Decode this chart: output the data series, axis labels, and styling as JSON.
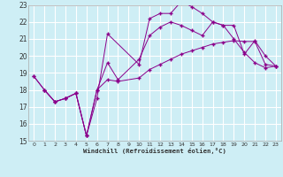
{
  "xlabel": "Windchill (Refroidissement éolien,°C)",
  "bg_color": "#ceeef5",
  "grid_color": "#ffffff",
  "line_color": "#8b008b",
  "xlim": [
    -0.5,
    23.5
  ],
  "ylim": [
    15,
    23
  ],
  "xticks": [
    0,
    1,
    2,
    3,
    4,
    5,
    6,
    7,
    8,
    9,
    10,
    11,
    12,
    13,
    14,
    15,
    16,
    17,
    18,
    19,
    20,
    21,
    22,
    23
  ],
  "yticks": [
    15,
    16,
    17,
    18,
    19,
    20,
    21,
    22,
    23
  ],
  "line1_x": [
    0,
    1,
    2,
    3,
    4,
    5,
    6,
    7,
    10,
    11,
    12,
    13,
    14,
    15,
    16,
    17,
    18,
    19,
    20,
    21,
    22,
    23
  ],
  "line1_y": [
    18.8,
    18.0,
    17.3,
    17.5,
    17.8,
    15.3,
    17.5,
    21.3,
    19.5,
    22.2,
    22.5,
    22.5,
    23.2,
    22.9,
    22.5,
    22.0,
    21.8,
    21.8,
    20.1,
    20.9,
    20.0,
    19.4
  ],
  "line2_x": [
    1,
    2,
    3,
    4,
    5,
    6,
    7,
    8,
    10,
    11,
    12,
    13,
    14,
    15,
    16,
    17,
    18,
    19,
    20,
    21,
    22,
    23
  ],
  "line2_y": [
    18.0,
    17.3,
    17.5,
    17.8,
    15.3,
    18.0,
    18.6,
    18.5,
    18.7,
    19.2,
    19.5,
    19.8,
    20.1,
    20.3,
    20.5,
    20.7,
    20.8,
    20.9,
    20.85,
    20.85,
    19.5,
    19.4
  ],
  "line3_x": [
    0,
    1,
    2,
    3,
    4,
    5,
    6,
    7,
    8,
    10,
    11,
    12,
    13,
    14,
    15,
    16,
    17,
    18,
    19,
    20,
    21,
    22,
    23
  ],
  "line3_y": [
    18.8,
    18.0,
    17.3,
    17.5,
    17.8,
    15.3,
    18.0,
    19.6,
    18.6,
    19.8,
    21.2,
    21.7,
    22.0,
    21.8,
    21.5,
    21.2,
    22.0,
    21.8,
    21.0,
    20.2,
    19.6,
    19.3,
    19.4
  ]
}
